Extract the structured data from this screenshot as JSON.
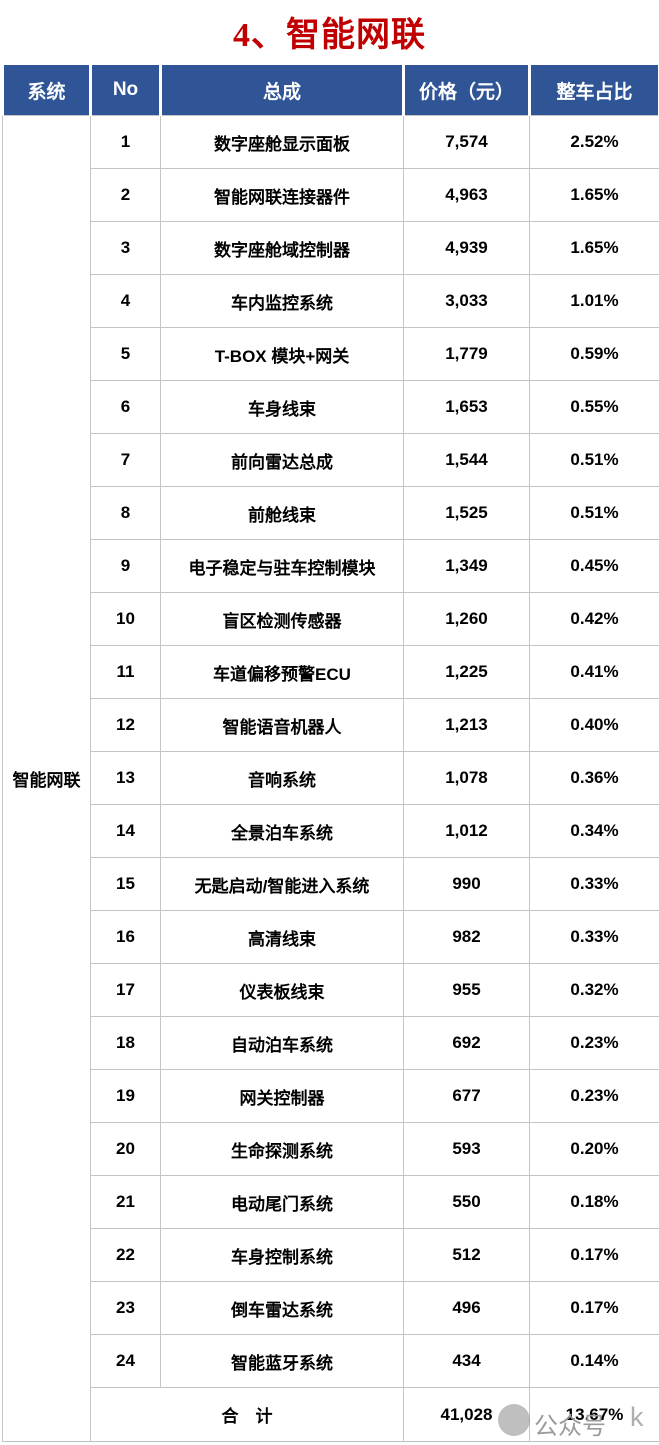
{
  "title": "4、智能网联",
  "colors": {
    "title_red": "#C00000",
    "header_bg": "#2F5597",
    "header_text": "#FFFFFF",
    "grid_border": "#C4C4C4",
    "body_text": "#000000",
    "watermark_gray": "#9A9A9A"
  },
  "table": {
    "system_label": "智能网联",
    "columns": [
      "系统",
      "No",
      "总成",
      "价格（元）",
      "整车占比"
    ],
    "rows": [
      {
        "no": "1",
        "name": "数字座舱显示面板",
        "price": "7,574",
        "pct": "2.52%"
      },
      {
        "no": "2",
        "name": "智能网联连接器件",
        "price": "4,963",
        "pct": "1.65%"
      },
      {
        "no": "3",
        "name": "数字座舱域控制器",
        "price": "4,939",
        "pct": "1.65%"
      },
      {
        "no": "4",
        "name": "车内监控系统",
        "price": "3,033",
        "pct": "1.01%"
      },
      {
        "no": "5",
        "name": "T-BOX 模块+网关",
        "price": "1,779",
        "pct": "0.59%"
      },
      {
        "no": "6",
        "name": "车身线束",
        "price": "1,653",
        "pct": "0.55%"
      },
      {
        "no": "7",
        "name": "前向雷达总成",
        "price": "1,544",
        "pct": "0.51%"
      },
      {
        "no": "8",
        "name": "前舱线束",
        "price": "1,525",
        "pct": "0.51%"
      },
      {
        "no": "9",
        "name": "电子稳定与驻车控制模块",
        "price": "1,349",
        "pct": "0.45%"
      },
      {
        "no": "10",
        "name": "盲区检测传感器",
        "price": "1,260",
        "pct": "0.42%"
      },
      {
        "no": "11",
        "name": "车道偏移预警ECU",
        "price": "1,225",
        "pct": "0.41%"
      },
      {
        "no": "12",
        "name": "智能语音机器人",
        "price": "1,213",
        "pct": "0.40%"
      },
      {
        "no": "13",
        "name": "音响系统",
        "price": "1,078",
        "pct": "0.36%"
      },
      {
        "no": "14",
        "name": "全景泊车系统",
        "price": "1,012",
        "pct": "0.34%"
      },
      {
        "no": "15",
        "name": "无匙启动/智能进入系统",
        "price": "990",
        "pct": "0.33%"
      },
      {
        "no": "16",
        "name": "高清线束",
        "price": "982",
        "pct": "0.33%"
      },
      {
        "no": "17",
        "name": "仪表板线束",
        "price": "955",
        "pct": "0.32%"
      },
      {
        "no": "18",
        "name": "自动泊车系统",
        "price": "692",
        "pct": "0.23%"
      },
      {
        "no": "19",
        "name": "网关控制器",
        "price": "677",
        "pct": "0.23%"
      },
      {
        "no": "20",
        "name": "生命探测系统",
        "price": "593",
        "pct": "0.20%"
      },
      {
        "no": "21",
        "name": "电动尾门系统",
        "price": "550",
        "pct": "0.18%"
      },
      {
        "no": "22",
        "name": "车身控制系统",
        "price": "512",
        "pct": "0.17%"
      },
      {
        "no": "23",
        "name": "倒车雷达系统",
        "price": "496",
        "pct": "0.17%"
      },
      {
        "no": "24",
        "name": "智能蓝牙系统",
        "price": "434",
        "pct": "0.14%"
      }
    ],
    "total": {
      "label": "合　计",
      "price": "41,028",
      "pct": "13.67%"
    }
  },
  "watermark": {
    "icon": "gray-circle",
    "text": "公众号",
    "suffix": "k"
  }
}
